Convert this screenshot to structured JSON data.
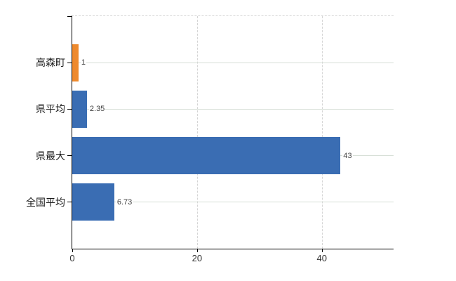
{
  "chart_data": {
    "type": "bar",
    "orientation": "horizontal",
    "title": "",
    "xlabel": "",
    "ylabel": "",
    "categories": [
      "高森町",
      "県平均",
      "県最大",
      "全国平均"
    ],
    "values": [
      1,
      2.35,
      43,
      6.73
    ],
    "value_labels": [
      "1",
      "2.35",
      "43",
      "6.73"
    ],
    "bar_colors": [
      "#ee8a2e",
      "#3a6db3",
      "#3a6db3",
      "#3a6db3"
    ],
    "x_ticks": [
      0,
      20,
      40
    ],
    "x_tick_labels": [
      "0",
      "20",
      "40"
    ],
    "xlim": [
      0,
      51.5
    ],
    "grid": true,
    "legend": null
  },
  "colors": {
    "bar_orange": "#ee8a2e",
    "bar_blue": "#3a6db3",
    "grid_horizontal": "#d6ded6",
    "grid_vertical_dashed": "#d4d4d4",
    "axis": "#000000",
    "tick_text": "#333333",
    "value_text": "#404040",
    "category_text": "#1a1a1a",
    "background": "#ffffff"
  }
}
